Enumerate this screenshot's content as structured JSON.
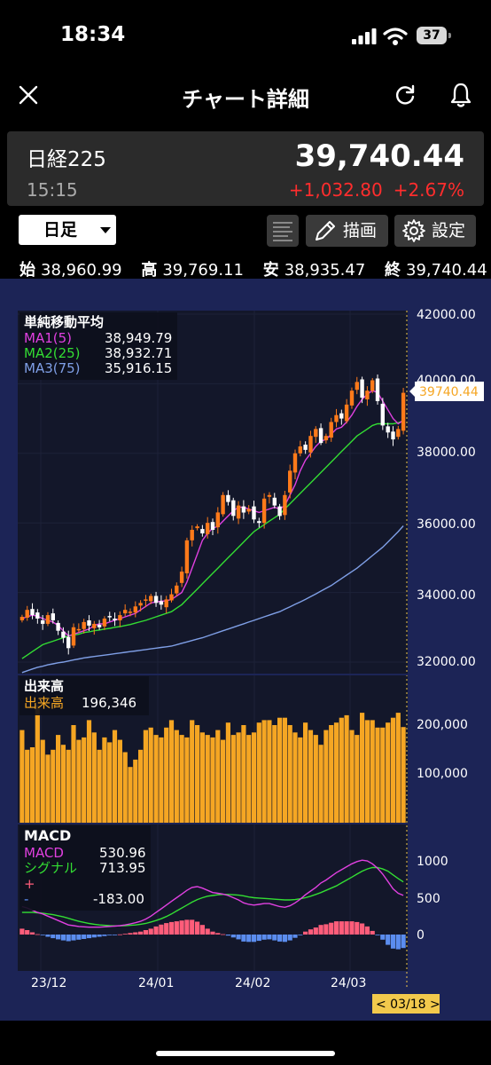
{
  "status_bar": {
    "time": "18:34",
    "battery": "37"
  },
  "nav": {
    "title": "チャート詳細"
  },
  "quote": {
    "name": "日経225",
    "time": "15:15",
    "price": "39,740.44",
    "change": "+1,032.80",
    "change_pct": "+2.67%",
    "up_color": "#ff2d2d"
  },
  "controls": {
    "period": "日足",
    "draw_label": "描画",
    "settings_label": "設定"
  },
  "ohlc": {
    "open_label": "始",
    "open": "38,960.99",
    "high_label": "高",
    "high": "39,769.11",
    "low_label": "安",
    "low": "38,935.47",
    "close_label": "終",
    "close": "39,740.44"
  },
  "price_panel": {
    "title": "単純移動平均",
    "ma": [
      {
        "label": "MA1(5)",
        "value": "38,949.79",
        "color": "#e040e0"
      },
      {
        "label": "MA2(25)",
        "value": "38,932.71",
        "color": "#33dd33"
      },
      {
        "label": "MA3(75)",
        "value": "35,916.15",
        "color": "#7f9fe6"
      }
    ],
    "y_ticks": [
      "42000.00",
      "40000.00",
      "38000.00",
      "36000.00",
      "34000.00",
      "32000.00"
    ],
    "last_price_tag": "39740.44"
  },
  "volume_panel": {
    "title": "出来高",
    "legend_label": "出来高",
    "legend_value": "196,346",
    "y_ticks": [
      "200,000",
      "100,000"
    ],
    "bar_color": "#f5a623"
  },
  "macd_panel": {
    "title": "MACD",
    "macd_label": "MACD",
    "macd_value": "530.96",
    "macd_color": "#e040e0",
    "signal_label": "シグナル",
    "signal_value": "713.95",
    "signal_color": "#33dd33",
    "plus_label": "+",
    "minus_label": "-",
    "hist_value": "-183.00",
    "y_ticks": [
      "1000",
      "500",
      "0"
    ]
  },
  "x_axis": {
    "ticks": [
      "23/12",
      "24/01",
      "24/02",
      "24/03"
    ],
    "cursor_label": "< 03/18 >"
  },
  "chart_data": {
    "type": "candlestick",
    "ylim": [
      32000,
      42000
    ],
    "close": [
      33300,
      33500,
      33350,
      33250,
      33100,
      33350,
      33200,
      32900,
      32700,
      32400,
      33000,
      32950,
      33150,
      33050,
      33100,
      33000,
      33250,
      33300,
      33200,
      33350,
      33500,
      33450,
      33600,
      33700,
      33800,
      33900,
      33700,
      33650,
      33800,
      33950,
      34200,
      34600,
      35500,
      35800,
      35900,
      35700,
      36000,
      35800,
      36300,
      36800,
      36600,
      36200,
      36500,
      36300,
      36400,
      36100,
      36000,
      36700,
      36800,
      36500,
      36200,
      36800,
      37500,
      38000,
      38200,
      38100,
      38500,
      38700,
      38300,
      38500,
      38900,
      39100,
      39000,
      39400,
      39800,
      40050,
      39600,
      39800,
      40100,
      39500,
      38800,
      38600,
      38400,
      38700,
      39740
    ],
    "ma1": [
      33250,
      33300,
      33350,
      33320,
      33250,
      33200,
      33150,
      33050,
      32900,
      32750,
      32800,
      32850,
      32900,
      32950,
      33050,
      33100,
      33100,
      33150,
      33200,
      33250,
      33300,
      33350,
      33400,
      33500,
      33600,
      33700,
      33730,
      33750,
      33760,
      33800,
      33900,
      34000,
      34300,
      34700,
      35100,
      35500,
      35700,
      35850,
      35900,
      36050,
      36200,
      36350,
      36450,
      36450,
      36400,
      36350,
      36300,
      36350,
      36400,
      36450,
      36400,
      36500,
      36800,
      37100,
      37500,
      37800,
      38000,
      38200,
      38350,
      38400,
      38550,
      38700,
      38750,
      38900,
      39100,
      39350,
      39550,
      39700,
      39800,
      39750,
      39500,
      39250,
      39000,
      38850,
      38950
    ],
    "ma2": [
      32100,
      32200,
      32300,
      32400,
      32500,
      32550,
      32600,
      32650,
      32700,
      32750,
      32780,
      32800,
      32850,
      32870,
      32900,
      32920,
      32950,
      32970,
      33000,
      33020,
      33050,
      33080,
      33120,
      33160,
      33200,
      33250,
      33300,
      33350,
      33400,
      33450,
      33550,
      33650,
      33800,
      33950,
      34100,
      34250,
      34400,
      34550,
      34700,
      34850,
      35000,
      35150,
      35300,
      35450,
      35600,
      35750,
      35850,
      35950,
      36050,
      36150,
      36250,
      36400,
      36550,
      36700,
      36850,
      37000,
      37150,
      37300,
      37450,
      37600,
      37750,
      37900,
      38050,
      38200,
      38350,
      38500,
      38600,
      38700,
      38800,
      38850,
      38850,
      38850,
      38850,
      38880,
      38930
    ],
    "ma3": [
      31700,
      31750,
      31800,
      31850,
      31880,
      31920,
      31950,
      31980,
      32000,
      32030,
      32060,
      32090,
      32120,
      32140,
      32160,
      32180,
      32200,
      32220,
      32240,
      32260,
      32280,
      32300,
      32320,
      32340,
      32360,
      32380,
      32400,
      32420,
      32440,
      32460,
      32500,
      32540,
      32580,
      32620,
      32660,
      32700,
      32750,
      32800,
      32850,
      32900,
      32950,
      33000,
      33050,
      33100,
      33150,
      33200,
      33250,
      33300,
      33350,
      33400,
      33450,
      33520,
      33590,
      33660,
      33730,
      33800,
      33880,
      33960,
      34040,
      34120,
      34200,
      34300,
      34400,
      34500,
      34600,
      34700,
      34820,
      34940,
      35060,
      35180,
      35300,
      35450,
      35600,
      35750,
      35916
    ]
  }
}
